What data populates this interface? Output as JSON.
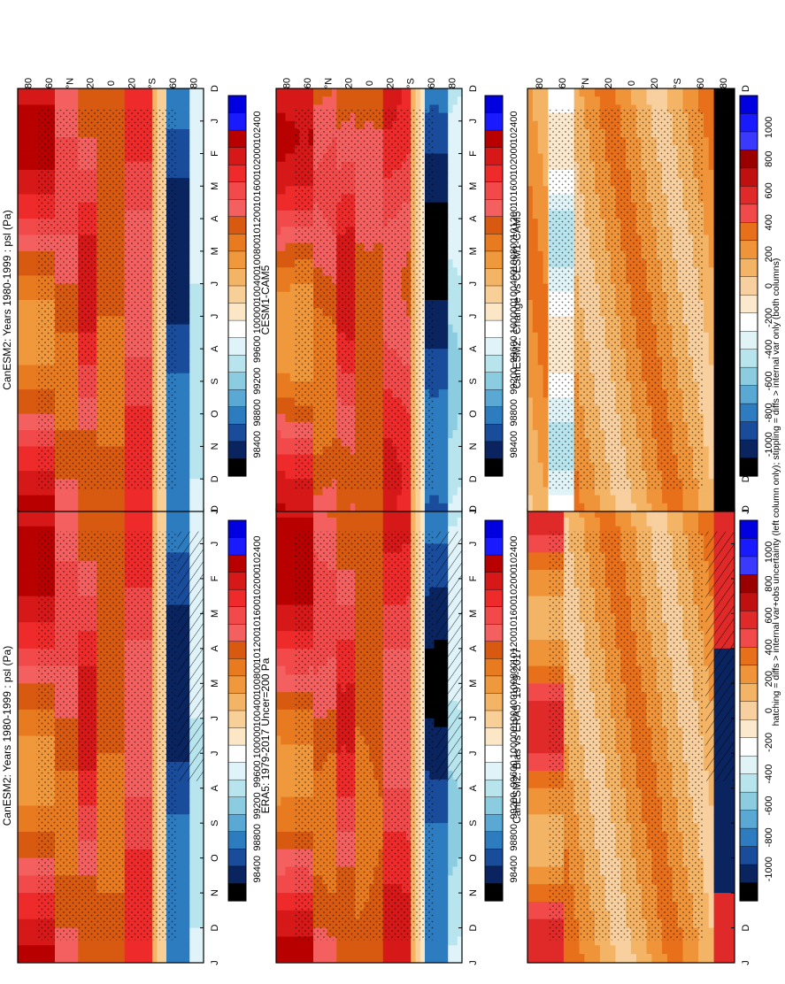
{
  "footer": "hatching = diffs > internal var+obs uncertainty (left column only); stippling = diffs > internal var only (both columns)",
  "month_labels": [
    "D",
    "J",
    "F",
    "M",
    "A",
    "M",
    "J",
    "J",
    "A",
    "S",
    "O",
    "N",
    "D",
    "J"
  ],
  "lat_labels": [
    "80",
    "60",
    "°N",
    "20",
    "0",
    "20",
    "°S",
    "60",
    "80"
  ],
  "colorbars": {
    "psl": [
      "102400",
      "102000",
      "101600",
      "101200",
      "100800",
      "100400",
      "100000",
      "99600",
      "99200",
      "98800",
      "98400"
    ],
    "diff": [
      "1000",
      "800",
      "600",
      "400",
      "200",
      "0",
      "-200",
      "-400",
      "-600",
      "-800",
      "-1000"
    ]
  },
  "colors": {
    "psl": [
      "#0000e0",
      "#1a1aff",
      "#b80000",
      "#d61818",
      "#ee2a2a",
      "#f24a4a",
      "#f46060",
      "#d85a10",
      "#e87a20",
      "#f0983c",
      "#f4b466",
      "#f8cf96",
      "#fbe6c6",
      "#ffffff",
      "#dff3f8",
      "#b8e4ee",
      "#8ccce0",
      "#5aa8d4",
      "#2e7cc0",
      "#1a4c9c",
      "#0a2460",
      "#000000"
    ],
    "diff": [
      "#0000e0",
      "#1a1aff",
      "#3a3aff",
      "#9a0000",
      "#c01010",
      "#e02a2a",
      "#f24a4a",
      "#e8701a",
      "#f0943a",
      "#f4b466",
      "#f8d0a0",
      "#fce8cc",
      "#ffffff",
      "#e0f4f8",
      "#b8e4ee",
      "#8ccce0",
      "#5aa8d4",
      "#2e7cc0",
      "#1a4c9c",
      "#0a2460",
      "#000000"
    ]
  },
  "chart_data": [
    {
      "type": "heatmap",
      "title": "CanESM2: Years 1980-1999 : psl (Pa)",
      "variable": "psl",
      "x": [
        "D",
        "J",
        "F",
        "M",
        "A",
        "M",
        "J",
        "J",
        "A",
        "S",
        "O",
        "N",
        "D",
        "J"
      ],
      "y": [
        80,
        60,
        40,
        20,
        0,
        -20,
        -40,
        -60,
        -80
      ],
      "levels": [
        102400,
        102000,
        101600,
        101200,
        100800,
        100400,
        100000,
        99600,
        99200,
        98800,
        98400
      ],
      "colorbar": "psl"
    },
    {
      "type": "heatmap",
      "title": "CanESM2: Years 1980-1999 : psl (Pa)",
      "variable": "psl",
      "x": [
        "D",
        "J",
        "F",
        "M",
        "A",
        "M",
        "J",
        "J",
        "A",
        "S",
        "O",
        "N",
        "D",
        "J"
      ],
      "y": [
        80,
        60,
        40,
        20,
        0,
        -20,
        -40,
        -60,
        -80
      ],
      "levels": [
        102400,
        102000,
        101600,
        101200,
        100800,
        100400,
        100000,
        99600,
        99200,
        98800,
        98400
      ],
      "colorbar": "psl"
    },
    {
      "type": "heatmap",
      "title": "ERA5: 1979-2017 Uncer=200 Pa",
      "variable": "psl",
      "x": [
        "D",
        "J",
        "F",
        "M",
        "A",
        "M",
        "J",
        "J",
        "A",
        "S",
        "O",
        "N",
        "D",
        "J"
      ],
      "y": [
        80,
        60,
        40,
        20,
        0,
        -20,
        -40,
        -60,
        -80
      ],
      "levels": [
        102400,
        102000,
        101600,
        101200,
        100800,
        100400,
        100000,
        99600,
        99200,
        98800,
        98400
      ],
      "colorbar": "psl"
    },
    {
      "type": "heatmap",
      "title": "CESM1-CAM5",
      "variable": "psl",
      "x": [
        "D",
        "J",
        "F",
        "M",
        "A",
        "M",
        "J",
        "J",
        "A",
        "S",
        "O",
        "N",
        "D",
        "J"
      ],
      "y": [
        80,
        60,
        40,
        20,
        0,
        -20,
        -40,
        -60,
        -80
      ],
      "levels": [
        102400,
        102000,
        101600,
        101200,
        100800,
        100400,
        100000,
        99600,
        99200,
        98800,
        98400
      ],
      "colorbar": "psl"
    },
    {
      "type": "heatmap",
      "title": "CanESM2: Bias vs ERA5: 1979-2017",
      "variable": "psl difference",
      "x": [
        "D",
        "J",
        "F",
        "M",
        "A",
        "M",
        "J",
        "J",
        "A",
        "S",
        "O",
        "N",
        "D",
        "J"
      ],
      "y": [
        80,
        60,
        40,
        20,
        0,
        -20,
        -40,
        -60,
        -80
      ],
      "levels": [
        1000,
        800,
        600,
        400,
        200,
        0,
        -200,
        -400,
        -600,
        -800,
        -1000
      ],
      "colorbar": "diff"
    },
    {
      "type": "heatmap",
      "title": "CanESM2: Change vs CESM1-CAM5",
      "variable": "psl difference",
      "x": [
        "D",
        "J",
        "F",
        "M",
        "A",
        "M",
        "J",
        "J",
        "A",
        "S",
        "O",
        "N",
        "D",
        "J"
      ],
      "y": [
        80,
        60,
        40,
        20,
        0,
        -20,
        -40,
        -60,
        -80
      ],
      "levels": [
        1000,
        800,
        600,
        400,
        200,
        0,
        -200,
        -400,
        -600,
        -800,
        -1000
      ],
      "colorbar": "diff"
    }
  ]
}
